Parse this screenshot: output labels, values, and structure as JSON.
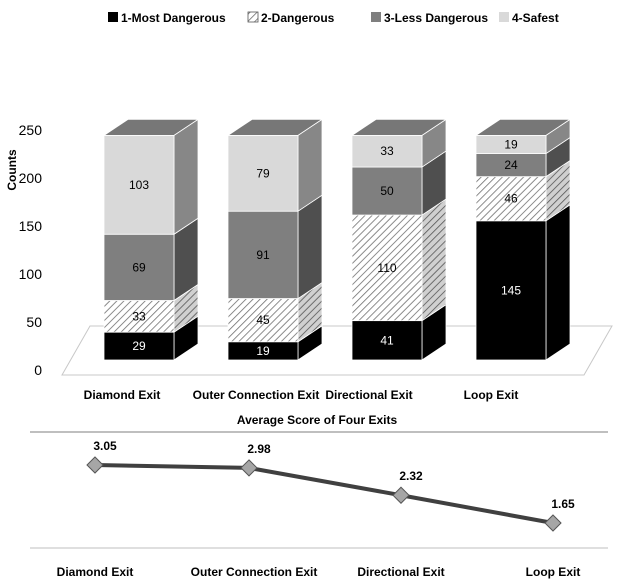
{
  "chart_data": [
    {
      "type": "bar",
      "stacked": true,
      "three_d": true,
      "categories": [
        "Diamond Exit",
        "Outer Connection Exit",
        "Directional Exit",
        "Loop Exit"
      ],
      "series": [
        {
          "name": "1-Most Dangerous",
          "values": [
            29,
            19,
            41,
            145
          ],
          "color": "#000000",
          "pattern": "solid"
        },
        {
          "name": "2-Dangerous",
          "values": [
            33,
            45,
            110,
            46
          ],
          "color": "#ffffff",
          "pattern": "diagonal-hatch"
        },
        {
          "name": "3-Less Dangerous",
          "values": [
            69,
            91,
            50,
            24
          ],
          "color": "#7f7f7f",
          "pattern": "solid"
        },
        {
          "name": "4-Safest",
          "values": [
            103,
            79,
            33,
            19
          ],
          "color": "#d9d9d9",
          "pattern": "solid"
        }
      ],
      "ylabel": "Counts",
      "ylim": [
        0,
        250
      ],
      "yticks": [
        "0",
        "50",
        "100",
        "150",
        "200",
        "250"
      ],
      "legend_position": "top",
      "grid": false
    },
    {
      "type": "line",
      "title": "Average Score of Four Exits",
      "categories": [
        "Diamond Exit",
        "Outer Connection Exit",
        "Directional Exit",
        "Loop Exit"
      ],
      "values": [
        3.05,
        2.98,
        2.32,
        1.65
      ],
      "labels": [
        "3.05",
        "2.98",
        "2.32",
        "1.65"
      ],
      "line_color": "#404040",
      "marker_color": "#a6a6a6",
      "marker": "diamond"
    }
  ]
}
